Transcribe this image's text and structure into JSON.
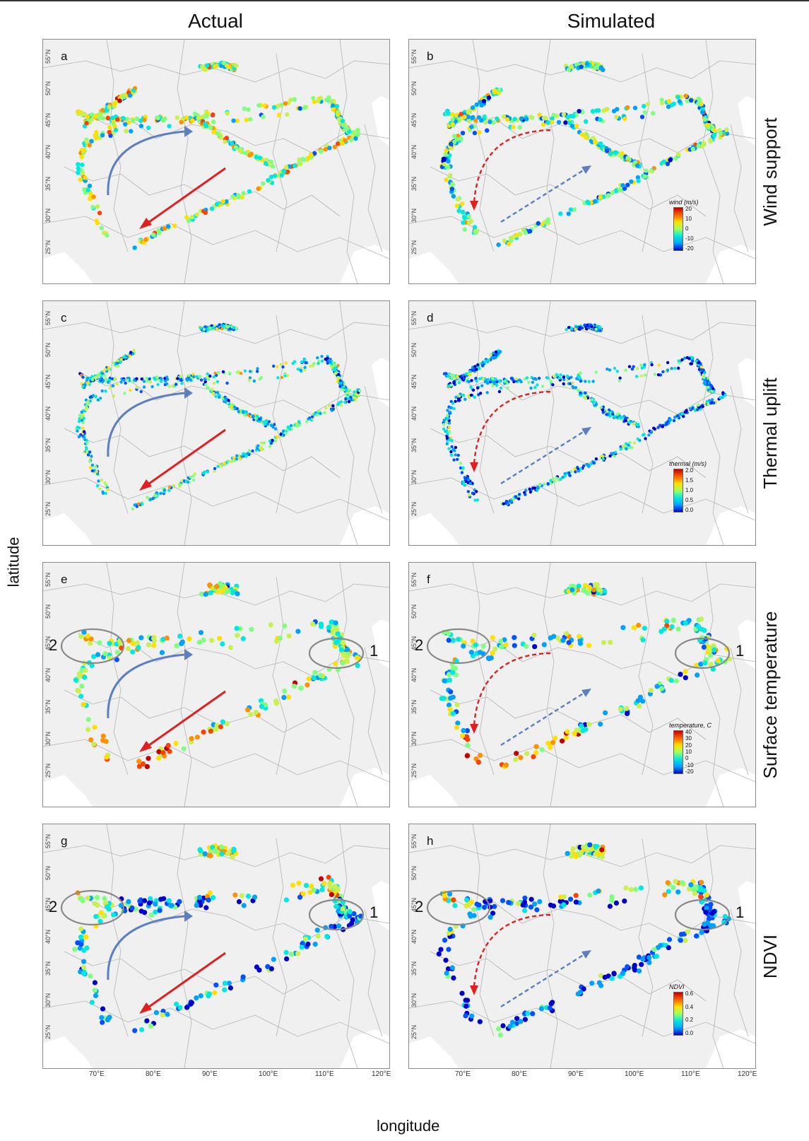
{
  "column_titles": [
    "Actual",
    "Simulated"
  ],
  "row_titles": [
    "Wind support",
    "Thermal uplift",
    "Surface temperature",
    "NDVI"
  ],
  "axis": {
    "y_title": "latitude",
    "x_title": "longitude",
    "lat_ticks": [
      "55°N",
      "50°N",
      "45°N",
      "40°N",
      "35°N",
      "30°N",
      "25°N"
    ],
    "lon_ticks": [
      "70°E",
      "80°E",
      "90°E",
      "100°E",
      "110°E",
      "120°E"
    ]
  },
  "panels": [
    {
      "letter": "a",
      "row": 0,
      "col": 0
    },
    {
      "letter": "b",
      "row": 0,
      "col": 1
    },
    {
      "letter": "c",
      "row": 1,
      "col": 0
    },
    {
      "letter": "d",
      "row": 1,
      "col": 1
    },
    {
      "letter": "e",
      "row": 2,
      "col": 0
    },
    {
      "letter": "f",
      "row": 2,
      "col": 1
    },
    {
      "letter": "g",
      "row": 3,
      "col": 0
    },
    {
      "letter": "h",
      "row": 3,
      "col": 1
    }
  ],
  "legends": [
    {
      "title": "wind (m/s)",
      "ticks": [
        "20",
        "10",
        "0",
        "-10",
        "-20"
      ]
    },
    {
      "title": "thermal (m/s)",
      "ticks": [
        "2.0",
        "1.5",
        "1.0",
        "0.5",
        "0.0"
      ]
    },
    {
      "title": "temperature, C",
      "ticks": [
        "40",
        "30",
        "20",
        "10",
        "0",
        "-10",
        "-20"
      ]
    },
    {
      "title": "NDVI",
      "ticks": [
        "0.6",
        "0.4",
        "0.2",
        "0.0"
      ]
    }
  ],
  "cluster_labels": [
    "1",
    "2"
  ],
  "colors": {
    "actual_arrow_autumn": "#e02020",
    "actual_arrow_spring": "#5b7fc0",
    "map_background": "#f0f0f0",
    "borders": "#a8a8a8"
  }
}
